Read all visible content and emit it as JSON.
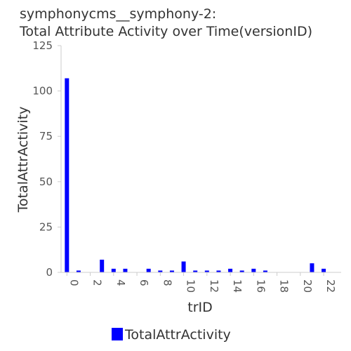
{
  "chart_data": {
    "type": "bar",
    "title": "symphonycms__symphony-2:",
    "subtitle": "Total Attribute Activity over Time(versionID)",
    "xlabel": "trID",
    "ylabel": "TotalAttrActivity",
    "x_tick_labels": [
      "0",
      "2",
      "4",
      "6",
      "8",
      "10",
      "12",
      "14",
      "16",
      "18",
      "20",
      "22"
    ],
    "y_tick_labels": [
      "0",
      "25",
      "50",
      "75",
      "100",
      "125"
    ],
    "ylim": [
      0,
      125
    ],
    "xlim": [
      -0.5,
      23.5
    ],
    "grid": false,
    "legend_position": "bottom-center",
    "series": [
      {
        "name": "TotalAttrActivity",
        "color": "#0000ff",
        "x": [
          0,
          1,
          2,
          3,
          4,
          5,
          6,
          7,
          8,
          9,
          10,
          11,
          12,
          13,
          14,
          15,
          16,
          17,
          18,
          19,
          20,
          21,
          22
        ],
        "values": [
          107,
          1,
          0,
          7,
          2,
          2,
          0,
          2,
          1,
          1,
          6,
          1,
          1,
          1,
          2,
          1,
          2,
          1,
          0,
          0,
          0,
          5,
          2
        ]
      }
    ]
  }
}
